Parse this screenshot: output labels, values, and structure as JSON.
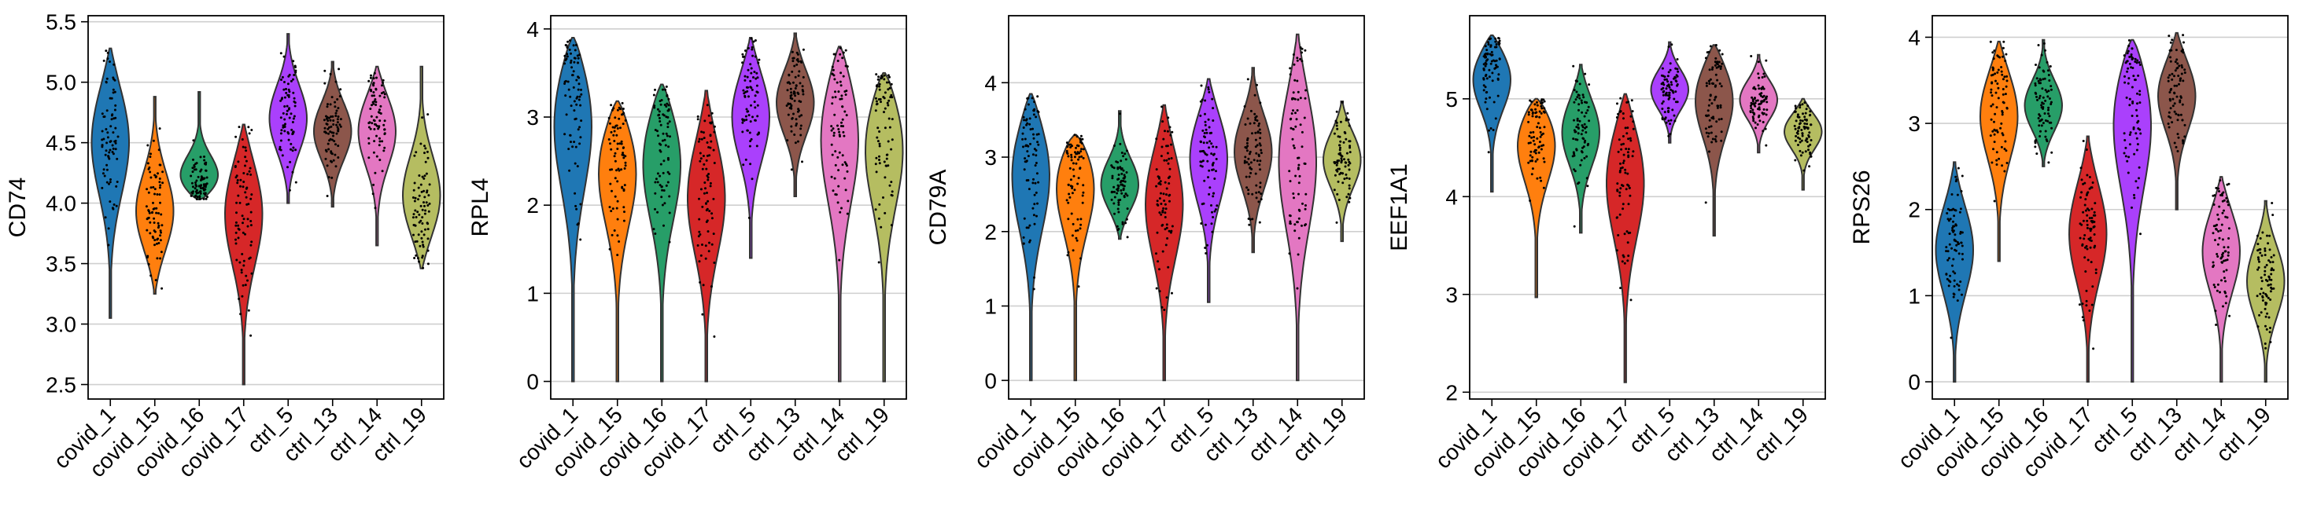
{
  "chart_data": [
    {
      "type": "violin",
      "ylabel": "CD74",
      "categories": [
        "covid_1",
        "covid_15",
        "covid_16",
        "covid_17",
        "ctrl_5",
        "ctrl_13",
        "ctrl_14",
        "ctrl_19"
      ],
      "ylim": [
        2.38,
        5.55
      ],
      "yticks": [
        2.5,
        3.0,
        3.5,
        4.0,
        4.5,
        5.0,
        5.5
      ],
      "ytick_labels": [
        "2.5",
        "3.0",
        "3.5",
        "4.0",
        "4.5",
        "5.0",
        "5.5"
      ],
      "grid": "horizontal",
      "violins": [
        {
          "min": 3.05,
          "max": 5.28,
          "median": 4.6
        },
        {
          "min": 3.25,
          "max": 4.88,
          "median": 3.9
        },
        {
          "min": 4.03,
          "max": 4.92,
          "median": 4.15
        },
        {
          "min": 2.5,
          "max": 4.65,
          "median": 4.0
        },
        {
          "min": 4.0,
          "max": 5.4,
          "median": 4.7
        },
        {
          "min": 3.97,
          "max": 5.17,
          "median": 4.6
        },
        {
          "min": 3.65,
          "max": 5.13,
          "median": 4.65
        },
        {
          "min": 3.46,
          "max": 5.13,
          "median": 4.0
        }
      ]
    },
    {
      "type": "violin",
      "ylabel": "RPL4",
      "categories": [
        "covid_1",
        "covid_15",
        "covid_16",
        "covid_17",
        "ctrl_5",
        "ctrl_13",
        "ctrl_14",
        "ctrl_19"
      ],
      "ylim": [
        -0.2,
        4.15
      ],
      "yticks": [
        0,
        1,
        2,
        3,
        4
      ],
      "ytick_labels": [
        "0",
        "1",
        "2",
        "3",
        "4"
      ],
      "grid": "horizontal",
      "violins": [
        {
          "min": 0,
          "max": 3.9,
          "median": 3.2
        },
        {
          "min": 0,
          "max": 3.18,
          "median": 2.6
        },
        {
          "min": 0,
          "max": 3.37,
          "median": 2.7
        },
        {
          "min": 0,
          "max": 3.3,
          "median": 2.2
        },
        {
          "min": 1.4,
          "max": 3.9,
          "median": 3.1
        },
        {
          "min": 2.1,
          "max": 3.95,
          "median": 3.2
        },
        {
          "min": 0,
          "max": 3.8,
          "median": 3.0
        },
        {
          "min": 0,
          "max": 3.5,
          "median": 2.9
        }
      ]
    },
    {
      "type": "violin",
      "ylabel": "CD79A",
      "categories": [
        "covid_1",
        "covid_15",
        "covid_16",
        "covid_17",
        "ctrl_5",
        "ctrl_13",
        "ctrl_14",
        "ctrl_19"
      ],
      "ylim": [
        -0.25,
        4.9
      ],
      "yticks": [
        0,
        1,
        2,
        3,
        4
      ],
      "ytick_labels": [
        "0",
        "1",
        "2",
        "3",
        "4"
      ],
      "grid": "horizontal",
      "violins": [
        {
          "min": 0,
          "max": 3.85,
          "median": 3.0
        },
        {
          "min": 0,
          "max": 3.3,
          "median": 2.9
        },
        {
          "min": 1.9,
          "max": 3.62,
          "median": 2.6
        },
        {
          "min": 0,
          "max": 3.7,
          "median": 2.5
        },
        {
          "min": 1.05,
          "max": 4.05,
          "median": 3.1
        },
        {
          "min": 1.72,
          "max": 4.2,
          "median": 3.1
        },
        {
          "min": 0,
          "max": 4.65,
          "median": 3.1
        },
        {
          "min": 1.87,
          "max": 3.75,
          "median": 3.0
        }
      ]
    },
    {
      "type": "violin",
      "ylabel": "EEF1A1",
      "categories": [
        "covid_1",
        "covid_15",
        "covid_16",
        "covid_17",
        "ctrl_5",
        "ctrl_13",
        "ctrl_14",
        "ctrl_19"
      ],
      "ylim": [
        1.93,
        5.85
      ],
      "yticks": [
        2,
        3,
        4,
        5
      ],
      "ytick_labels": [
        "2",
        "3",
        "4",
        "5"
      ],
      "grid": "horizontal",
      "violins": [
        {
          "min": 4.05,
          "max": 5.65,
          "median": 5.3
        },
        {
          "min": 2.97,
          "max": 5.0,
          "median": 4.7
        },
        {
          "min": 3.63,
          "max": 5.35,
          "median": 4.7
        },
        {
          "min": 2.1,
          "max": 5.05,
          "median": 4.3
        },
        {
          "min": 4.55,
          "max": 5.58,
          "median": 5.1
        },
        {
          "min": 3.6,
          "max": 5.55,
          "median": 5.1
        },
        {
          "min": 4.45,
          "max": 5.45,
          "median": 5.0
        },
        {
          "min": 4.07,
          "max": 5.0,
          "median": 4.7
        }
      ]
    },
    {
      "type": "violin",
      "ylabel": "RPS26",
      "categories": [
        "covid_1",
        "covid_15",
        "covid_16",
        "covid_17",
        "ctrl_5",
        "ctrl_13",
        "ctrl_14",
        "ctrl_19"
      ],
      "ylim": [
        -0.2,
        4.25
      ],
      "yticks": [
        0,
        1,
        2,
        3,
        4
      ],
      "ytick_labels": [
        "0",
        "1",
        "2",
        "3",
        "4"
      ],
      "grid": "horizontal",
      "violins": [
        {
          "min": 0,
          "max": 2.55,
          "median": 1.6
        },
        {
          "min": 1.4,
          "max": 3.95,
          "median": 3.2
        },
        {
          "min": 2.5,
          "max": 3.97,
          "median": 3.2
        },
        {
          "min": 0,
          "max": 2.85,
          "median": 1.8
        },
        {
          "min": 0,
          "max": 3.97,
          "median": 3.3
        },
        {
          "min": 2.0,
          "max": 4.05,
          "median": 3.4
        },
        {
          "min": 0,
          "max": 2.38,
          "median": 1.6
        },
        {
          "min": 0,
          "max": 2.1,
          "median": 1.2
        }
      ]
    }
  ],
  "colors": [
    "#1f77b4",
    "#ff7f0e",
    "#279e68",
    "#d62728",
    "#aa40fc",
    "#8c564b",
    "#e377c2",
    "#b5bd61"
  ],
  "grid_color": "#cfcfcf"
}
